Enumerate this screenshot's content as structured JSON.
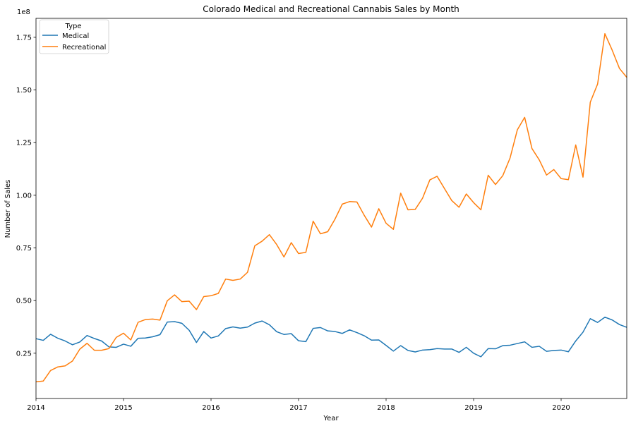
{
  "chart_data": {
    "type": "line",
    "title": "Colorado Medical and Recreational Cannabis Sales by Month",
    "xlabel": "Year",
    "ylabel": "Number of Sales",
    "y_offset_label": "1e8",
    "xlim": [
      "2014-01",
      "2020-10"
    ],
    "ylim": [
      3500000,
      184000000
    ],
    "x_ticks": [
      {
        "value": "2014-01",
        "label": "2014"
      },
      {
        "value": "2015-01",
        "label": "2015"
      },
      {
        "value": "2016-01",
        "label": "2016"
      },
      {
        "value": "2017-01",
        "label": "2017"
      },
      {
        "value": "2018-01",
        "label": "2018"
      },
      {
        "value": "2019-01",
        "label": "2019"
      },
      {
        "value": "2020-01",
        "label": "2020"
      }
    ],
    "y_ticks": [
      {
        "value": 25000000,
        "label": "0.25"
      },
      {
        "value": 50000000,
        "label": "0.50"
      },
      {
        "value": 75000000,
        "label": "0.75"
      },
      {
        "value": 100000000,
        "label": "1.00"
      },
      {
        "value": 125000000,
        "label": "1.25"
      },
      {
        "value": 150000000,
        "label": "1.50"
      },
      {
        "value": 175000000,
        "label": "1.75"
      }
    ],
    "grid": false,
    "legend": {
      "title": "Type",
      "placement": "top-left"
    },
    "x": [
      "2014-01",
      "2014-02",
      "2014-03",
      "2014-04",
      "2014-05",
      "2014-06",
      "2014-07",
      "2014-08",
      "2014-09",
      "2014-10",
      "2014-11",
      "2014-12",
      "2015-01",
      "2015-02",
      "2015-03",
      "2015-04",
      "2015-05",
      "2015-06",
      "2015-07",
      "2015-08",
      "2015-09",
      "2015-10",
      "2015-11",
      "2015-12",
      "2016-01",
      "2016-02",
      "2016-03",
      "2016-04",
      "2016-05",
      "2016-06",
      "2016-07",
      "2016-08",
      "2016-09",
      "2016-10",
      "2016-11",
      "2016-12",
      "2017-01",
      "2017-02",
      "2017-03",
      "2017-04",
      "2017-05",
      "2017-06",
      "2017-07",
      "2017-08",
      "2017-09",
      "2017-10",
      "2017-11",
      "2017-12",
      "2018-01",
      "2018-02",
      "2018-03",
      "2018-04",
      "2018-05",
      "2018-06",
      "2018-07",
      "2018-08",
      "2018-09",
      "2018-10",
      "2018-11",
      "2018-12",
      "2019-01",
      "2019-02",
      "2019-03",
      "2019-04",
      "2019-05",
      "2019-06",
      "2019-07",
      "2019-08",
      "2019-09",
      "2019-10",
      "2019-11",
      "2019-12",
      "2020-01",
      "2020-02",
      "2020-03",
      "2020-04",
      "2020-05",
      "2020-06",
      "2020-07",
      "2020-08",
      "2020-09",
      "2020-10"
    ],
    "series": [
      {
        "name": "Medical",
        "color": "#1f77b4",
        "values": [
          31900000,
          31100000,
          34000000,
          32100000,
          30800000,
          29000000,
          30300000,
          33400000,
          32000000,
          30800000,
          28000000,
          27800000,
          29300000,
          28300000,
          32100000,
          32200000,
          32800000,
          33800000,
          39800000,
          40000000,
          39200000,
          35900000,
          30100000,
          35300000,
          32200000,
          33200000,
          36700000,
          37500000,
          36900000,
          37400000,
          39300000,
          40300000,
          38500000,
          35200000,
          33900000,
          34300000,
          30900000,
          30500000,
          36800000,
          37200000,
          35600000,
          35300000,
          34400000,
          36100000,
          34800000,
          33300000,
          31200000,
          31300000,
          28700000,
          26000000,
          28600000,
          26300000,
          25600000,
          26500000,
          26700000,
          27200000,
          27000000,
          27000000,
          25400000,
          27800000,
          25000000,
          23300000,
          27200000,
          27100000,
          28600000,
          28800000,
          29600000,
          30400000,
          27800000,
          28300000,
          25900000,
          26300000,
          26500000,
          25700000,
          30800000,
          35000000,
          41400000,
          39600000,
          42100000,
          40800000,
          38600000,
          37300000
        ]
      },
      {
        "name": "Recreational",
        "color": "#ff7f0e",
        "values": [
          11400000,
          11800000,
          16800000,
          18500000,
          19000000,
          21300000,
          26900000,
          29700000,
          26400000,
          26400000,
          27200000,
          32500000,
          34500000,
          31300000,
          39700000,
          41000000,
          41200000,
          40700000,
          49900000,
          52700000,
          49500000,
          49700000,
          45700000,
          51900000,
          52300000,
          53400000,
          60200000,
          59600000,
          60200000,
          63400000,
          76000000,
          78200000,
          81300000,
          76600000,
          70700000,
          77500000,
          72300000,
          72900000,
          87700000,
          81700000,
          82700000,
          88700000,
          95800000,
          97000000,
          96800000,
          90500000,
          84900000,
          93600000,
          86700000,
          83800000,
          101000000,
          93100000,
          93300000,
          98600000,
          107300000,
          109000000,
          103200000,
          97500000,
          94300000,
          100600000,
          96500000,
          93100000,
          109500000,
          105100000,
          109300000,
          117700000,
          131100000,
          137000000,
          122200000,
          116800000,
          109600000,
          112200000,
          107900000,
          107400000,
          123900000,
          108600000,
          144200000,
          152800000,
          176700000,
          168900000,
          160200000,
          156000000
        ]
      }
    ]
  }
}
